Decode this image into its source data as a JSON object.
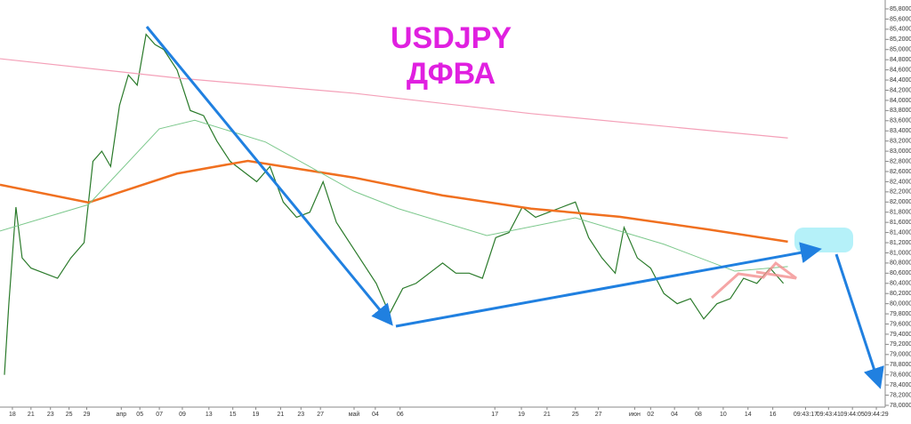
{
  "chart_data": {
    "type": "line",
    "title": "USDJPY",
    "subtitle": "ДФВА",
    "title_color": "#e020e0",
    "xlim": [
      0,
      200
    ],
    "ylim": [
      78.0,
      85.8
    ],
    "xticks": [
      {
        "value": 2.8,
        "label": "18"
      },
      {
        "value": 7,
        "label": "21"
      },
      {
        "value": 11.4,
        "label": "23"
      },
      {
        "value": 15.6,
        "label": "25"
      },
      {
        "value": 19.6,
        "label": "29"
      },
      {
        "value": 27.4,
        "label": "апр"
      },
      {
        "value": 31.6,
        "label": "05"
      },
      {
        "value": 36,
        "label": "07"
      },
      {
        "value": 41.2,
        "label": "09"
      },
      {
        "value": 47.2,
        "label": "13"
      },
      {
        "value": 52.6,
        "label": "15"
      },
      {
        "value": 57.8,
        "label": "19"
      },
      {
        "value": 63.4,
        "label": "21"
      },
      {
        "value": 68,
        "label": "23"
      },
      {
        "value": 72.4,
        "label": "27"
      },
      {
        "value": 80,
        "label": "май"
      },
      {
        "value": 84.8,
        "label": "04"
      },
      {
        "value": 90.4,
        "label": "06"
      },
      {
        "value": 111.8,
        "label": "17"
      },
      {
        "value": 117.8,
        "label": "19"
      },
      {
        "value": 123.6,
        "label": "21"
      },
      {
        "value": 130,
        "label": "25"
      },
      {
        "value": 135.2,
        "label": "27"
      },
      {
        "value": 143.4,
        "label": "июн"
      },
      {
        "value": 147,
        "label": "02"
      },
      {
        "value": 152.4,
        "label": "04"
      },
      {
        "value": 157.8,
        "label": "08"
      },
      {
        "value": 163.4,
        "label": "10"
      },
      {
        "value": 169,
        "label": "14"
      },
      {
        "value": 174.6,
        "label": "16"
      },
      {
        "value": 182,
        "label": "09:43:17"
      },
      {
        "value": 187.2,
        "label": "09:43:41"
      },
      {
        "value": 192.6,
        "label": "09:44:05"
      },
      {
        "value": 198,
        "label": "09:44:29"
      }
    ],
    "yticks": [
      {
        "value": 78.0,
        "label": "78,0000"
      },
      {
        "value": 78.2,
        "label": "78,2000"
      },
      {
        "value": 78.4,
        "label": "78,4000"
      },
      {
        "value": 78.6,
        "label": "78,6000"
      },
      {
        "value": 78.8,
        "label": "78,8000"
      },
      {
        "value": 79.0,
        "label": "79,0000"
      },
      {
        "value": 79.2,
        "label": "79,2000"
      },
      {
        "value": 79.4,
        "label": "79,4000"
      },
      {
        "value": 79.6,
        "label": "79,6000"
      },
      {
        "value": 79.8,
        "label": "79,8000"
      },
      {
        "value": 80.0,
        "label": "80,0000"
      },
      {
        "value": 80.2,
        "label": "80,2000"
      },
      {
        "value": 80.4,
        "label": "80,4000"
      },
      {
        "value": 80.6,
        "label": "80,6000"
      },
      {
        "value": 80.8,
        "label": "80,8000"
      },
      {
        "value": 81.0,
        "label": "81,0000"
      },
      {
        "value": 81.2,
        "label": "81,2000"
      },
      {
        "value": 81.4,
        "label": "81,4000"
      },
      {
        "value": 81.6,
        "label": "81,6000"
      },
      {
        "value": 81.8,
        "label": "81,8000"
      },
      {
        "value": 82.0,
        "label": "82,0000"
      },
      {
        "value": 82.2,
        "label": "82,2000"
      },
      {
        "value": 82.4,
        "label": "82,4000"
      },
      {
        "value": 82.6,
        "label": "82,6000"
      },
      {
        "value": 82.8,
        "label": "82,8000"
      },
      {
        "value": 83.0,
        "label": "83,0000"
      },
      {
        "value": 83.2,
        "label": "83,2000"
      },
      {
        "value": 83.4,
        "label": "83,4000"
      },
      {
        "value": 83.6,
        "label": "83,6000"
      },
      {
        "value": 83.8,
        "label": "83,8000"
      },
      {
        "value": 84.0,
        "label": "84,0000"
      },
      {
        "value": 84.2,
        "label": "84,2000"
      },
      {
        "value": 84.4,
        "label": "84,4000"
      },
      {
        "value": 84.6,
        "label": "84,6000"
      },
      {
        "value": 84.8,
        "label": "84,8000"
      },
      {
        "value": 85.0,
        "label": "85,0000"
      },
      {
        "value": 85.2,
        "label": "85,2000"
      },
      {
        "value": 85.4,
        "label": "85,4000"
      },
      {
        "value": 85.6,
        "label": "85,6000"
      },
      {
        "value": 85.8,
        "label": "85,8000"
      }
    ],
    "series": [
      {
        "color": "#2a7a2a",
        "width": 1.2,
        "x": [
          1,
          2,
          3.6,
          5,
          7,
          10,
          13,
          16,
          19,
          21,
          23,
          25,
          27,
          29,
          31,
          33,
          35,
          37,
          40,
          43,
          46,
          49,
          52,
          55,
          58,
          61,
          64,
          67,
          70,
          73,
          76,
          79,
          82,
          85,
          88,
          91,
          94,
          97,
          100,
          103,
          106,
          109,
          112,
          115,
          118,
          121,
          124,
          127,
          130,
          133,
          136,
          139,
          141,
          144,
          147,
          150,
          153,
          156,
          159,
          162,
          165,
          168,
          171,
          174,
          177
        ],
        "values": [
          78.6,
          80.0,
          81.9,
          80.9,
          80.7,
          80.6,
          80.5,
          80.9,
          81.2,
          82.8,
          83.0,
          82.7,
          83.9,
          84.5,
          84.3,
          85.3,
          85.1,
          85.0,
          84.6,
          83.8,
          83.7,
          83.2,
          82.8,
          82.6,
          82.4,
          82.7,
          82.0,
          81.7,
          81.8,
          82.4,
          81.6,
          81.2,
          80.8,
          80.4,
          79.8,
          80.3,
          80.4,
          80.6,
          80.8,
          80.6,
          80.6,
          80.5,
          81.3,
          81.4,
          81.9,
          81.7,
          81.8,
          81.9,
          82.0,
          81.3,
          80.9,
          80.6,
          81.5,
          80.9,
          80.7,
          80.2,
          80.0,
          80.1,
          79.7,
          80.0,
          80.1,
          80.5,
          80.4,
          80.7,
          80.4
        ]
      },
      {
        "color": "#f07020",
        "width": 2.5,
        "x": [
          0,
          20,
          40,
          56,
          80,
          100,
          120,
          140,
          160,
          178
        ],
        "values": [
          82.34,
          81.99,
          82.56,
          82.81,
          82.48,
          82.13,
          81.87,
          81.71,
          81.46,
          81.22
        ]
      },
      {
        "color": "#f4a0b8",
        "width": 1.2,
        "x": [
          0,
          40,
          80,
          120,
          178
        ],
        "values": [
          84.82,
          84.44,
          84.14,
          83.74,
          83.26
        ]
      },
      {
        "color": "#7cc88c",
        "width": 1,
        "x": [
          0,
          20,
          36,
          44,
          60,
          80,
          90,
          110,
          130,
          150,
          166,
          178
        ],
        "values": [
          81.43,
          81.95,
          83.44,
          83.61,
          83.18,
          82.21,
          81.87,
          81.34,
          81.69,
          81.17,
          80.64,
          80.73
        ]
      }
    ]
  }
}
